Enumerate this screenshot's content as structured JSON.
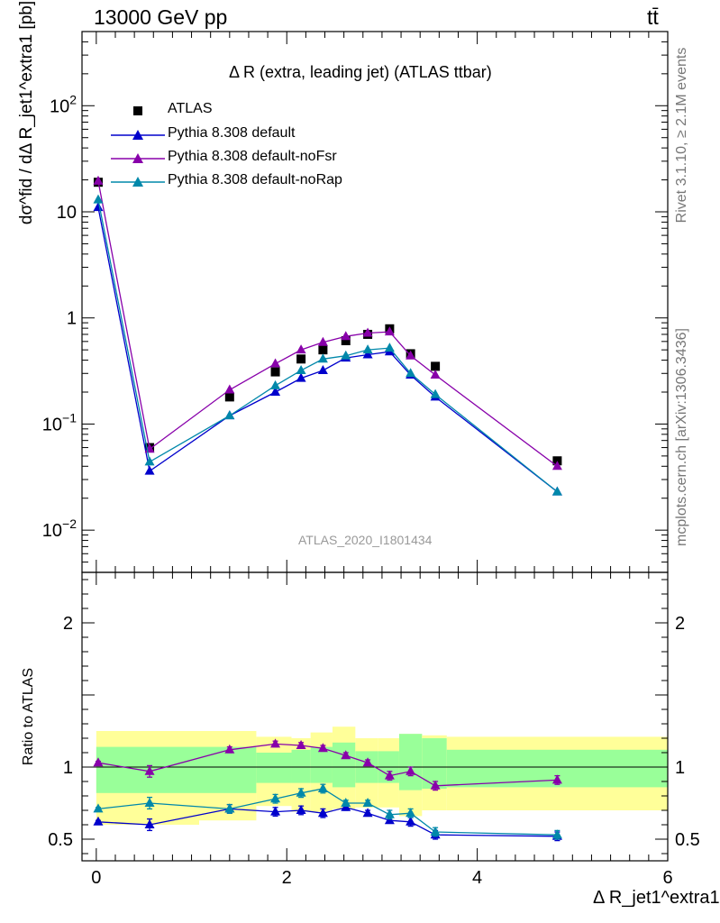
{
  "header": {
    "left": "13000 GeV pp",
    "right": "tt̄"
  },
  "side_texts": {
    "rivet": "Rivet 3.1.10, ≥ 2.1M events",
    "mcplots": "mcplots.cern.ch [arXiv:1306.3436]"
  },
  "colors": {
    "atlas": "#000000",
    "default": "#0000cc",
    "noFsr": "#8800aa",
    "noRap": "#0088aa",
    "band_inner": "#99ff99",
    "band_outer": "#ffff99"
  },
  "chart_data": [
    {
      "type": "line",
      "title": "Δ R (extra, leading jet) (ATLAS ttbar)",
      "ylabel": "dσ^fid / dΔ R_jet1^extra1 [pb]",
      "yscale": "log",
      "ylim": [
        0.004,
        500
      ],
      "xlim": [
        -0.15,
        6.0
      ],
      "yticks": [
        {
          "value": 0.01,
          "label": "10^-2"
        },
        {
          "value": 0.1,
          "label": "10^-1"
        },
        {
          "value": 1,
          "label": "1"
        },
        {
          "value": 10,
          "label": "10"
        },
        {
          "value": 100,
          "label": "10^2"
        }
      ],
      "watermark": "ATLAS_2020_I1801434",
      "legend_position": "top-left",
      "x": [
        0.02,
        0.56,
        1.4,
        1.88,
        2.15,
        2.38,
        2.62,
        2.85,
        3.08,
        3.3,
        3.56,
        4.84
      ],
      "series": [
        {
          "name": "ATLAS",
          "marker": "square",
          "color": "#000000",
          "values": [
            19,
            0.06,
            0.18,
            0.31,
            0.41,
            0.5,
            0.61,
            0.7,
            0.79,
            0.46,
            0.35,
            0.045
          ]
        },
        {
          "name": "Pythia 8.308 default",
          "marker": "triangle",
          "color": "#0000cc",
          "values": [
            11,
            0.036,
            0.12,
            0.2,
            0.27,
            0.32,
            0.42,
            0.45,
            0.48,
            0.29,
            0.18,
            0.023
          ]
        },
        {
          "name": "Pythia 8.308 default-noFsr",
          "marker": "triangle",
          "color": "#8800aa",
          "values": [
            19.5,
            0.058,
            0.21,
            0.37,
            0.5,
            0.59,
            0.67,
            0.72,
            0.74,
            0.44,
            0.29,
            0.04
          ]
        },
        {
          "name": "Pythia 8.308 default-noRap",
          "marker": "triangle",
          "color": "#0088aa",
          "values": [
            13,
            0.044,
            0.12,
            0.23,
            0.32,
            0.41,
            0.44,
            0.5,
            0.52,
            0.3,
            0.19,
            0.023
          ]
        }
      ]
    },
    {
      "type": "line",
      "ylabel": "Ratio to ATLAS",
      "xlabel": "Δ R_jet1^extra1",
      "ylim": [
        0.35,
        2.35
      ],
      "xlim": [
        -0.15,
        6.0
      ],
      "yticks": [
        0.5,
        1,
        2
      ],
      "xticks": [
        0,
        2,
        4,
        6
      ],
      "reference_line": 1,
      "bands": {
        "edges": [
          0,
          1.08,
          1.68,
          2.05,
          2.25,
          2.48,
          2.72,
          2.96,
          3.18,
          3.42,
          3.68,
          6.0
        ],
        "inner_low": [
          0.82,
          0.82,
          0.89,
          0.89,
          0.89,
          0.86,
          0.89,
          0.89,
          0.84,
          0.85,
          0.86
        ],
        "inner_high": [
          1.14,
          1.14,
          1.1,
          1.12,
          1.14,
          1.17,
          1.11,
          1.11,
          1.23,
          1.2,
          1.12
        ],
        "outer_low": [
          0.6,
          0.63,
          0.73,
          0.69,
          0.69,
          0.71,
          0.72,
          0.72,
          0.66,
          0.7,
          0.7
        ],
        "outer_high": [
          1.25,
          1.25,
          1.21,
          1.2,
          1.24,
          1.28,
          1.2,
          1.2,
          1.23,
          1.22,
          1.21
        ]
      },
      "series": [
        {
          "name": "Pythia 8.308 default",
          "color": "#0000cc",
          "values": [
            0.62,
            0.6,
            0.71,
            0.69,
            0.7,
            0.68,
            0.72,
            0.68,
            0.63,
            0.62,
            0.53,
            0.52
          ],
          "errors": [
            0.01,
            0.04,
            0.03,
            0.03,
            0.03,
            0.03,
            0.02,
            0.02,
            0.02,
            0.03,
            0.03,
            0.03
          ]
        },
        {
          "name": "Pythia 8.308 default-noFsr",
          "color": "#8800aa",
          "values": [
            1.03,
            0.97,
            1.12,
            1.16,
            1.15,
            1.13,
            1.08,
            1.03,
            0.94,
            0.97,
            0.87,
            0.91
          ],
          "errors": [
            0.01,
            0.04,
            0.02,
            0.02,
            0.02,
            0.02,
            0.02,
            0.02,
            0.03,
            0.03,
            0.03,
            0.03
          ]
        },
        {
          "name": "Pythia 8.308 default-noRap",
          "color": "#0088aa",
          "values": [
            0.71,
            0.75,
            0.71,
            0.78,
            0.82,
            0.85,
            0.75,
            0.75,
            0.67,
            0.68,
            0.55,
            0.53
          ],
          "errors": [
            0.01,
            0.04,
            0.03,
            0.03,
            0.03,
            0.03,
            0.02,
            0.02,
            0.03,
            0.03,
            0.03,
            0.03
          ]
        }
      ]
    }
  ]
}
